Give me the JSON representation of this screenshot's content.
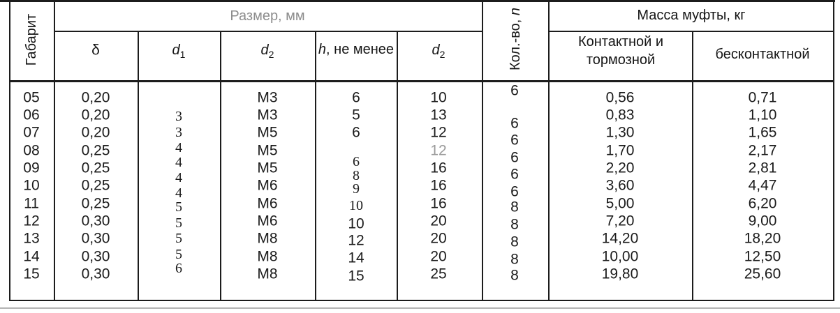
{
  "table": {
    "headers": {
      "gabarit": "Габарит",
      "size_group": "Размер, мм",
      "delta": "δ",
      "d1": {
        "base": "d",
        "sub": "1"
      },
      "d2a": {
        "base": "d",
        "sub": "2"
      },
      "h": {
        "base": "h",
        "rest": ", не менее"
      },
      "d2b": {
        "base": "d",
        "sub": "2"
      },
      "qty": {
        "base": "Кол.-во, ",
        "n": "n"
      },
      "mass_group": "Масса муфты, кг",
      "mass_contact": "Контактной и тормозной",
      "mass_contactless": "бесконтактной"
    },
    "columns": {
      "gabarit": [
        "05",
        "06",
        "07",
        "08",
        "09",
        "10",
        "11",
        "12",
        "13",
        "14",
        "15"
      ],
      "delta": [
        "0,20",
        "0,20",
        "0,20",
        "0,25",
        "0,25",
        "0,25",
        "0,25",
        "0,30",
        "0,30",
        "0,30",
        "0,30"
      ],
      "d1": [
        "3",
        "3",
        "4",
        "4",
        "4",
        "4",
        "5",
        "5",
        "5",
        "5",
        "6"
      ],
      "d2_thread": [
        "M3",
        "M3",
        "M5",
        "M5",
        "M5",
        "M6",
        "M6",
        "M6",
        "M8",
        "M8",
        "M8"
      ],
      "h": [
        "6",
        "5",
        "6",
        "6",
        "8",
        "9",
        "10",
        "10",
        "12",
        "14",
        "15"
      ],
      "d2": [
        "10",
        "13",
        "12",
        "12",
        "16",
        "16",
        "16",
        "20",
        "20",
        "20",
        "25"
      ],
      "qty": [
        "6",
        "6",
        "6",
        "6",
        "6",
        "6",
        "8",
        "8",
        "8",
        "8",
        "8"
      ],
      "mass_contact": [
        "0,56",
        "0,83",
        "1,30",
        "1,70",
        "2,20",
        "3,60",
        "5,00",
        "7,20",
        "14,20",
        "10,00",
        "19,80"
      ],
      "mass_contactless": [
        "0,71",
        "1,10",
        "1,65",
        "2,17",
        "2,81",
        "4,47",
        "6,20",
        "9,00",
        "18,20",
        "12,50",
        "25,60"
      ]
    }
  },
  "colors": {
    "border": "#1c1c1c",
    "header_gray": "#8d8d8d",
    "faded_value": "#9a9a9a",
    "bottom_rule": "#b4b4b4",
    "background": "#ffffff"
  }
}
